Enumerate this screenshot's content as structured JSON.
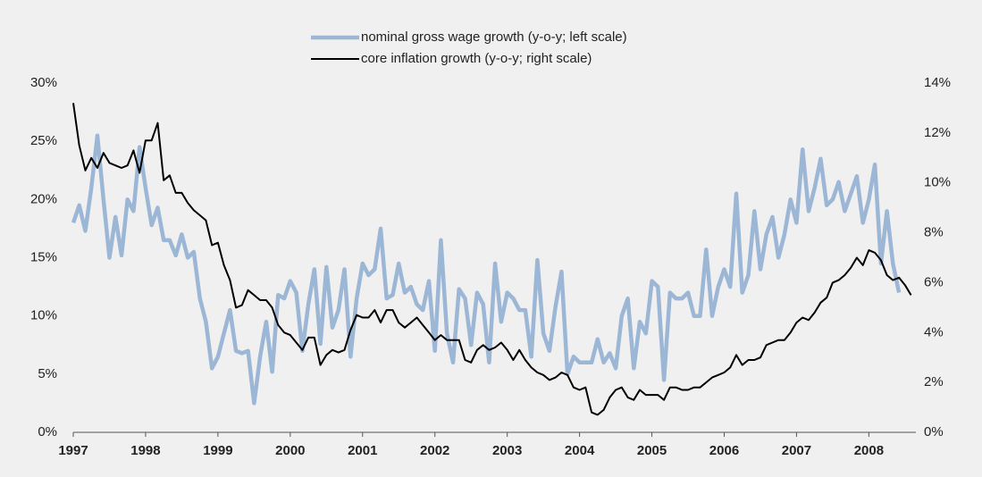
{
  "chart_data": {
    "type": "line",
    "x": [
      1997,
      1997.083,
      1997.167,
      1997.25,
      1997.333,
      1997.417,
      1997.5,
      1997.583,
      1997.667,
      1997.75,
      1997.833,
      1997.917,
      1998,
      1998.083,
      1998.167,
      1998.25,
      1998.333,
      1998.417,
      1998.5,
      1998.583,
      1998.667,
      1998.75,
      1998.833,
      1998.917,
      1999,
      1999.083,
      1999.167,
      1999.25,
      1999.333,
      1999.417,
      1999.5,
      1999.583,
      1999.667,
      1999.75,
      1999.833,
      1999.917,
      2000,
      2000.083,
      2000.167,
      2000.25,
      2000.333,
      2000.417,
      2000.5,
      2000.583,
      2000.667,
      2000.75,
      2000.833,
      2000.917,
      2001,
      2001.083,
      2001.167,
      2001.25,
      2001.333,
      2001.417,
      2001.5,
      2001.583,
      2001.667,
      2001.75,
      2001.833,
      2001.917,
      2002,
      2002.083,
      2002.167,
      2002.25,
      2002.333,
      2002.417,
      2002.5,
      2002.583,
      2002.667,
      2002.75,
      2002.833,
      2002.917,
      2003,
      2003.083,
      2003.167,
      2003.25,
      2003.333,
      2003.417,
      2003.5,
      2003.583,
      2003.667,
      2003.75,
      2003.833,
      2003.917,
      2004,
      2004.083,
      2004.167,
      2004.25,
      2004.333,
      2004.417,
      2004.5,
      2004.583,
      2004.667,
      2004.75,
      2004.833,
      2004.917,
      2005,
      2005.083,
      2005.167,
      2005.25,
      2005.333,
      2005.417,
      2005.5,
      2005.583,
      2005.667,
      2005.75,
      2005.833,
      2005.917,
      2006,
      2006.083,
      2006.167,
      2006.25,
      2006.333,
      2006.417,
      2006.5,
      2006.583,
      2006.667,
      2006.75,
      2006.833,
      2006.917,
      2007,
      2007.083,
      2007.167,
      2007.25,
      2007.333,
      2007.417,
      2007.5,
      2007.583,
      2007.667,
      2007.75,
      2007.833,
      2007.917,
      2008,
      2008.083,
      2008.167,
      2008.25,
      2008.333,
      2008.417,
      2008.5,
      2008.583
    ],
    "series": [
      {
        "name": "nominal gross wage growth (y-o-y; left scale)",
        "color": "#9cb6d6",
        "values": [
          18,
          19.5,
          17.3,
          21,
          25.5,
          20,
          15,
          18.5,
          15.2,
          20,
          19,
          24.5,
          21,
          17.8,
          19.3,
          16.5,
          16.5,
          15.2,
          17,
          15,
          15.5,
          11.5,
          9.5,
          5.5,
          6.5,
          8.5,
          10.5,
          7,
          6.8,
          7,
          2.5,
          6.5,
          9.5,
          5.2,
          11.8,
          11.5,
          13,
          12,
          7,
          11,
          14,
          7.6,
          14.2,
          9,
          10.5,
          14,
          6.5,
          11.5,
          14.5,
          13.5,
          14,
          17.5,
          11.5,
          11.8,
          14.5,
          12,
          12.5,
          11,
          10.5,
          13,
          7,
          16.5,
          8.5,
          6,
          12.3,
          11.5,
          7.5,
          12,
          11,
          6,
          14.5,
          9.5,
          12,
          11.5,
          10.5,
          10.5,
          6.5,
          14.8,
          8.5,
          7,
          10.8,
          13.8,
          5,
          6.5,
          6,
          6,
          6,
          8,
          6,
          6.8,
          5.5,
          10,
          11.5,
          5.5,
          9.5,
          8.5,
          13,
          12.5,
          4.5,
          12,
          11.5,
          11.5,
          12,
          10,
          10,
          15.7,
          10,
          12.5,
          14,
          12.5,
          20.5,
          12,
          13.5,
          19,
          14,
          17,
          18.5,
          15,
          17,
          20,
          18,
          24.3,
          19,
          21,
          23.5,
          19.5,
          20,
          21.5,
          19,
          20.5,
          22,
          18,
          20,
          23,
          14.5,
          19,
          14.5,
          12,
          null,
          null
        ]
      },
      {
        "name": "core inflation growth (y-o-y; right scale)",
        "color": "#000000",
        "axis": "y2",
        "values": [
          13.2,
          11.5,
          10.5,
          11,
          10.6,
          11.2,
          10.8,
          10.7,
          10.6,
          10.7,
          11.3,
          10.4,
          11.7,
          11.7,
          12.4,
          10.1,
          10.3,
          9.6,
          9.6,
          9.2,
          8.9,
          8.7,
          8.5,
          7.5,
          7.6,
          6.7,
          6.1,
          5,
          5.1,
          5.7,
          5.5,
          5.3,
          5.3,
          5,
          4.3,
          4,
          3.9,
          3.6,
          3.3,
          3.8,
          3.8,
          2.7,
          3.1,
          3.3,
          3.2,
          3.3,
          4.1,
          4.7,
          4.6,
          4.6,
          4.9,
          4.4,
          4.9,
          4.9,
          4.4,
          4.2,
          4.4,
          4.6,
          4.3,
          4,
          3.7,
          3.9,
          3.7,
          3.7,
          3.7,
          2.9,
          2.8,
          3.3,
          3.5,
          3.3,
          3.4,
          3.6,
          3.3,
          2.9,
          3.3,
          2.9,
          2.6,
          2.4,
          2.3,
          2.1,
          2.2,
          2.4,
          2.3,
          1.8,
          1.7,
          1.8,
          0.8,
          0.7,
          0.9,
          1.4,
          1.7,
          1.8,
          1.4,
          1.3,
          1.7,
          1.5,
          1.5,
          1.5,
          1.3,
          1.8,
          1.8,
          1.7,
          1.7,
          1.8,
          1.8,
          2,
          2.2,
          2.3,
          2.4,
          2.6,
          3.1,
          2.7,
          2.9,
          2.9,
          3,
          3.5,
          3.6,
          3.7,
          3.7,
          4,
          4.4,
          4.6,
          4.5,
          4.8,
          5.2,
          5.4,
          6,
          6.1,
          6.3,
          6.6,
          7,
          6.7,
          7.3,
          7.2,
          6.9,
          6.3,
          6.1,
          6.2,
          5.9,
          5.5
        ]
      }
    ],
    "xlim": [
      1997,
      2008.65
    ],
    "xticks": [
      1997,
      1998,
      1999,
      2000,
      2001,
      2002,
      2003,
      2004,
      2005,
      2006,
      2007,
      2008
    ],
    "ylim": [
      0,
      30
    ],
    "yticks": [
      {
        "value": 0,
        "label": "0%"
      },
      {
        "value": 5,
        "label": "5%"
      },
      {
        "value": 10,
        "label": "10%"
      },
      {
        "value": 15,
        "label": "15%"
      },
      {
        "value": 20,
        "label": "20%"
      },
      {
        "value": 25,
        "label": "25%"
      },
      {
        "value": 30,
        "label": "30%"
      }
    ],
    "y2lim": [
      0,
      14
    ],
    "y2ticks": [
      {
        "value": 0,
        "label": "0%"
      },
      {
        "value": 2,
        "label": "2%"
      },
      {
        "value": 4,
        "label": "4%"
      },
      {
        "value": 6,
        "label": "6%"
      },
      {
        "value": 8,
        "label": "8%"
      },
      {
        "value": 10,
        "label": "10%"
      },
      {
        "value": 12,
        "label": "12%"
      },
      {
        "value": 14,
        "label": "14%"
      }
    ],
    "legend": "top"
  }
}
